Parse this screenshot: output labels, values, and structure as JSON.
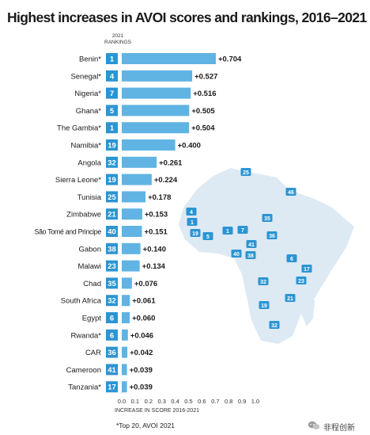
{
  "title": "Highest increases in AVOI scores and rankings, 2016–2021",
  "rank_header": {
    "year": "2021",
    "label": "RANKINGS"
  },
  "footnote": "*Top 20, AVOI 2021",
  "watermark": "非程创新",
  "colors": {
    "bar": "#5fb4e3",
    "rank_box": "#2b95d3",
    "rank_text": "#ffffff",
    "map": "#dde9f3",
    "map_badge": "#2b95d3"
  },
  "chart_data": {
    "type": "bar",
    "orientation": "horizontal",
    "title": "Highest increases in AVOI scores and rankings, 2016–2021",
    "xlabel": "INCREASE IN SCORE 2016-2021",
    "xlim": [
      0.0,
      1.0
    ],
    "xticks": [
      "0.0",
      "0.1",
      "0.2",
      "0.3",
      "0.4",
      "0.5",
      "0.6",
      "0.7",
      "0.8",
      "0.9",
      "1.0"
    ],
    "categories": [
      "Benin*",
      "Senegal*",
      "Nigeria*",
      "Ghana*",
      "The Gambia*",
      "Namibia*",
      "Angola",
      "Sierra Leone*",
      "Tunisia",
      "Zimbabwe",
      "São Tomé and Principe",
      "Gabon",
      "Malawi",
      "Chad",
      "South Africa",
      "Egypt",
      "Rwanda*",
      "CAR",
      "Cameroon",
      "Tanzania*"
    ],
    "values": [
      0.704,
      0.527,
      0.516,
      0.505,
      0.504,
      0.4,
      0.261,
      0.224,
      0.178,
      0.153,
      0.151,
      0.14,
      0.134,
      0.076,
      0.061,
      0.06,
      0.046,
      0.042,
      0.039,
      0.039
    ],
    "value_labels": [
      "+0.704",
      "+0.527",
      "+0.516",
      "+0.505",
      "+0.504",
      "+0.400",
      "+0.261",
      "+0.224",
      "+0.178",
      "+0.153",
      "+0.151",
      "+0.140",
      "+0.134",
      "+0.076",
      "+0.061",
      "+0.060",
      "+0.046",
      "+0.042",
      "+0.039",
      "+0.039"
    ],
    "rankings_2021": [
      "1",
      "4",
      "7",
      "5",
      "1",
      "19",
      "32",
      "19",
      "25",
      "21",
      "40",
      "38",
      "23",
      "35",
      "32",
      "6",
      "6",
      "36",
      "41",
      "17"
    ]
  },
  "map_badges": [
    "25",
    "46",
    "4",
    "1",
    "19",
    "5",
    "1",
    "7",
    "35",
    "36",
    "41",
    "40",
    "38",
    "6",
    "17",
    "32",
    "23",
    "21",
    "19",
    "32"
  ]
}
